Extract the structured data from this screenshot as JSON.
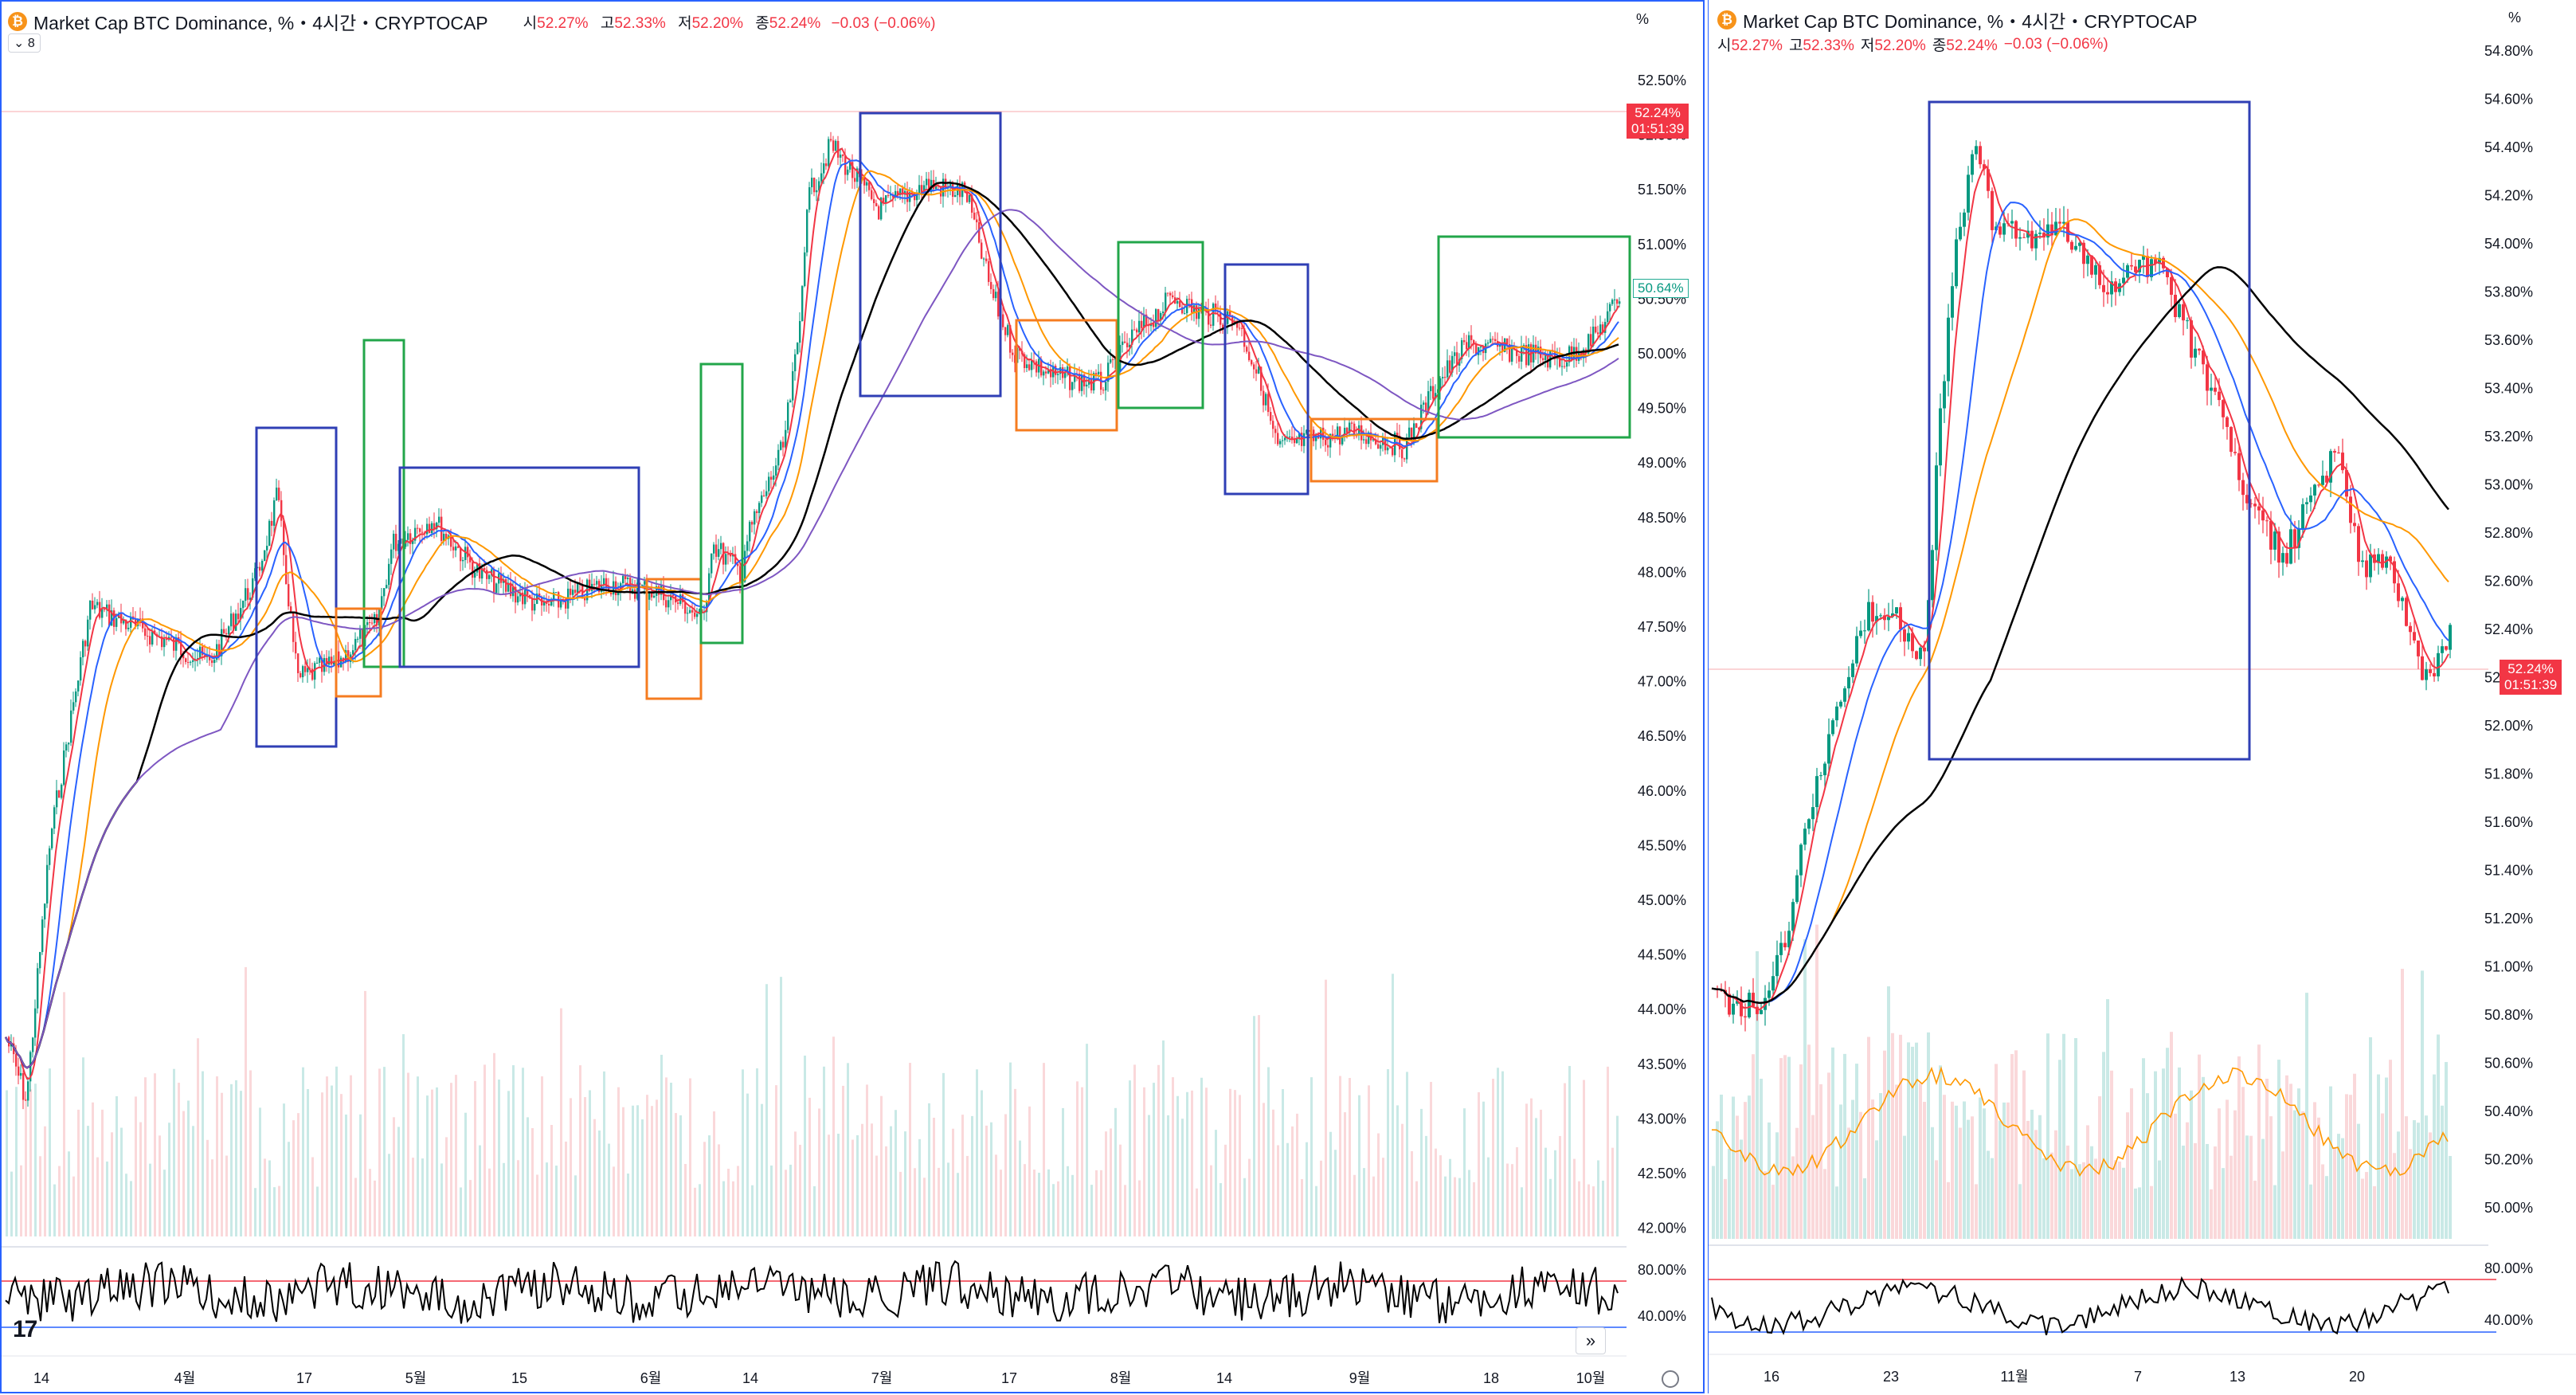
{
  "left": {
    "title": "Market Cap BTC Dominance, %・4시간・CRYPTOCAP",
    "ohlc": {
      "o_label": "시",
      "o": "52.27%",
      "h_label": "고",
      "h": "52.33%",
      "l_label": "저",
      "l": "52.20%",
      "c_label": "종",
      "c": "52.24%",
      "chg": "−0.03 (−0.06%)"
    },
    "collapse_count": "8",
    "unit": "%",
    "price_tag": {
      "value": "52.24%",
      "countdown": "01:51:39"
    },
    "green_tag": "50.64%",
    "y_ticks": [
      "52.50%",
      "52.00%",
      "51.50%",
      "51.00%",
      "50.50%",
      "50.00%",
      "49.50%",
      "49.00%",
      "48.50%",
      "48.00%",
      "47.50%",
      "47.00%",
      "46.50%",
      "46.00%",
      "45.50%",
      "45.00%",
      "44.50%",
      "44.00%",
      "43.50%",
      "43.00%",
      "42.50%",
      "42.00%"
    ],
    "rsi_ticks": [
      "80.00%",
      "40.00%"
    ],
    "x_ticks": [
      "14",
      "4월",
      "17",
      "5월",
      "15",
      "6월",
      "14",
      "7월",
      "17",
      "8월",
      "14",
      "9월",
      "18",
      "10월"
    ],
    "logo": "17",
    "scroll_icon": "»"
  },
  "right": {
    "title": "Market Cap BTC Dominance, %・4시간・CRYPTOCAP",
    "ohlc": {
      "o_label": "시",
      "o": "52.27%",
      "h_label": "고",
      "h": "52.33%",
      "l_label": "저",
      "l": "52.20%",
      "c_label": "종",
      "c": "52.24%",
      "chg": "−0.03 (−0.06%)"
    },
    "unit": "%",
    "price_tag": {
      "value": "52.24%",
      "countdown": "01:51:39"
    },
    "y_ticks": [
      "54.80%",
      "54.60%",
      "54.40%",
      "54.20%",
      "54.00%",
      "53.80%",
      "53.60%",
      "53.40%",
      "53.20%",
      "53.00%",
      "52.80%",
      "52.60%",
      "52.40%",
      "52.20%",
      "52.00%",
      "51.80%",
      "51.60%",
      "51.40%",
      "51.20%",
      "51.00%",
      "50.80%",
      "50.60%",
      "50.40%",
      "50.20%",
      "50.00%"
    ],
    "rsi_ticks": [
      "80.00%",
      "40.00%"
    ],
    "x_ticks": [
      "16",
      "23",
      "11월",
      "7",
      "13",
      "20"
    ]
  },
  "colors": {
    "up": "#089981",
    "down": "#f23645",
    "ma_red": "#f23645",
    "ma_blue": "#2962ff",
    "ma_orange": "#ff9800",
    "ma_black": "#000000",
    "ma_purple": "#7e57c2",
    "box_blue": "#2f3fb5",
    "box_green": "#22a64a",
    "box_orange": "#f57c20",
    "rsi": "#000000",
    "rsi_upper": "#f23645",
    "rsi_lower": "#2962ff"
  }
}
